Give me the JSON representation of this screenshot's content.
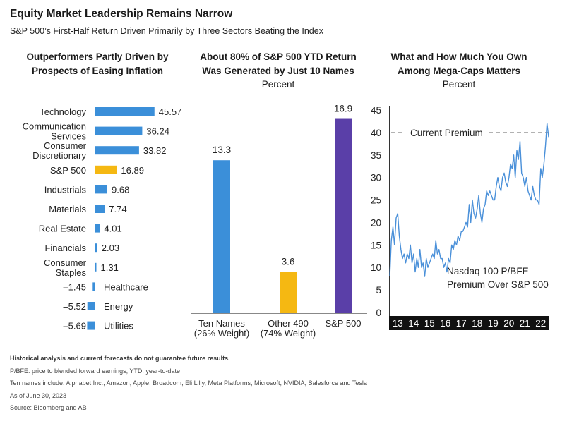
{
  "header": {
    "title": "Equity Market Leadership Remains Narrow",
    "subtitle": "S&P 500’s First-Half Return Driven Primarily by Three Sectors Beating the Index"
  },
  "panels": [
    {
      "title_line1": "Outperformers Partly Driven by",
      "title_line2": "Prospects of Easing Inflation",
      "unit": ""
    },
    {
      "title_line1": "About 80% of S&P 500 YTD Return",
      "title_line2": "Was Generated by Just 10 Names",
      "unit": "Percent"
    },
    {
      "title_line1": "What and How Much You Own",
      "title_line2": "Among Mega-Caps Matters",
      "unit": "Percent"
    }
  ],
  "colors": {
    "blue": "#3b8fd9",
    "gold": "#f5b812",
    "purple": "#5a3fa8",
    "line": "#4a90d9",
    "dark": "#111111"
  },
  "chart_data": [
    {
      "type": "bar",
      "orientation": "horizontal",
      "categories": [
        [
          "Technology"
        ],
        [
          "Communication",
          "Services"
        ],
        [
          "Consumer",
          "Discretionary"
        ],
        [
          "S&P 500"
        ],
        [
          "Industrials"
        ],
        [
          "Materials"
        ],
        [
          "Real Estate"
        ],
        [
          "Financials"
        ],
        [
          "Consumer",
          "Staples"
        ],
        [
          "Healthcare"
        ],
        [
          "Energy"
        ],
        [
          "Utilities"
        ]
      ],
      "values": [
        45.57,
        36.24,
        33.82,
        16.89,
        9.68,
        7.74,
        4.01,
        2.03,
        1.31,
        -1.45,
        -5.52,
        -5.69
      ],
      "labels": [
        "45.57",
        "36.24",
        "33.82",
        "16.89",
        "9.68",
        "7.74",
        "4.01",
        "2.03",
        "1.31",
        "–1.45",
        "–5.52",
        "–5.69"
      ],
      "highlight_index": 3,
      "xlim": [
        -7,
        50
      ]
    },
    {
      "type": "bar",
      "categories": [
        [
          "Ten Names",
          "(26% Weight)"
        ],
        [
          "Other 490",
          "(74% Weight)"
        ],
        [
          "S&P 500"
        ]
      ],
      "values": [
        13.3,
        3.6,
        16.9
      ],
      "labels": [
        "13.3",
        "3.6",
        "16.9"
      ],
      "ylim": [
        0,
        18
      ]
    },
    {
      "type": "line",
      "series": [
        {
          "name": "Nasdaq 100 P/BFE Premium Over S&P 500",
          "x": [
            2012.7,
            2012.8,
            2012.9,
            2013.0,
            2013.1,
            2013.2,
            2013.3,
            2013.4,
            2013.5,
            2013.6,
            2013.7,
            2013.8,
            2013.9,
            2014.0,
            2014.1,
            2014.2,
            2014.3,
            2014.4,
            2014.5,
            2014.6,
            2014.7,
            2014.8,
            2014.9,
            2015.0,
            2015.1,
            2015.2,
            2015.3,
            2015.4,
            2015.5,
            2015.6,
            2015.7,
            2015.8,
            2015.9,
            2016.0,
            2016.1,
            2016.2,
            2016.3,
            2016.4,
            2016.5,
            2016.6,
            2016.7,
            2016.8,
            2016.9,
            2017.0,
            2017.1,
            2017.2,
            2017.3,
            2017.4,
            2017.5,
            2017.6,
            2017.7,
            2017.8,
            2017.9,
            2018.0,
            2018.1,
            2018.2,
            2018.3,
            2018.4,
            2018.5,
            2018.6,
            2018.7,
            2018.8,
            2018.9,
            2019.0,
            2019.1,
            2019.2,
            2019.3,
            2019.4,
            2019.5,
            2019.6,
            2019.7,
            2019.8,
            2019.9,
            2020.0,
            2020.1,
            2020.2,
            2020.3,
            2020.4,
            2020.5,
            2020.6,
            2020.7,
            2020.8,
            2020.9,
            2021.0,
            2021.1,
            2021.2,
            2021.3,
            2021.4,
            2021.5,
            2021.6,
            2021.7,
            2021.8,
            2021.9,
            2022.0,
            2022.1,
            2022.2,
            2022.3,
            2022.4,
            2022.5,
            2022.6,
            2022.7
          ],
          "values": [
            8,
            16,
            19,
            15,
            21,
            22,
            17,
            14,
            12,
            13,
            11,
            13,
            12,
            15,
            11,
            13,
            9,
            12,
            10,
            14,
            10,
            11,
            8,
            12,
            10,
            11,
            12,
            13,
            12,
            16,
            13,
            14,
            12,
            12,
            10,
            11,
            9,
            12,
            11,
            15,
            14,
            16,
            15,
            17,
            16,
            18,
            18,
            19,
            20,
            19,
            24,
            20,
            25,
            22,
            21,
            23,
            26,
            22,
            20,
            23,
            24,
            27,
            26,
            27,
            26,
            25,
            25,
            28,
            30,
            28,
            27,
            30,
            31,
            29,
            28,
            30,
            33,
            32,
            35,
            30,
            36,
            34,
            38,
            31,
            30,
            28,
            30,
            27,
            26,
            25,
            28,
            26,
            25,
            25,
            24,
            32,
            30,
            33,
            37,
            42,
            39
          ]
        }
      ],
      "annotation": "Current Premium",
      "annotation_value": 40,
      "series_label_line1": "Nasdaq 100 P/BFE",
      "series_label_line2": "Premium Over S&P 500",
      "yticks": [
        45,
        40,
        35,
        30,
        25,
        20,
        15,
        10,
        5,
        0
      ],
      "ylim": [
        0,
        45
      ],
      "xticks": [
        "13",
        "14",
        "15",
        "16",
        "17",
        "18",
        "19",
        "20",
        "21",
        "22"
      ],
      "xlim": [
        2012.7,
        2022.7
      ]
    }
  ],
  "footnotes": {
    "disclaimer": "Historical analysis and current forecasts do not guarantee future results.",
    "definitions": "P/BFE: price to blended forward earnings; YTD: year-to-date",
    "ten_names": "Ten names include: Alphabet Inc., Amazon, Apple, Broadcom, Eli Lilly, Meta Platforms, Microsoft, NVIDIA, Salesforce and Tesla",
    "as_of": "As of June 30, 2023",
    "source": "Source: Bloomberg and AB"
  }
}
